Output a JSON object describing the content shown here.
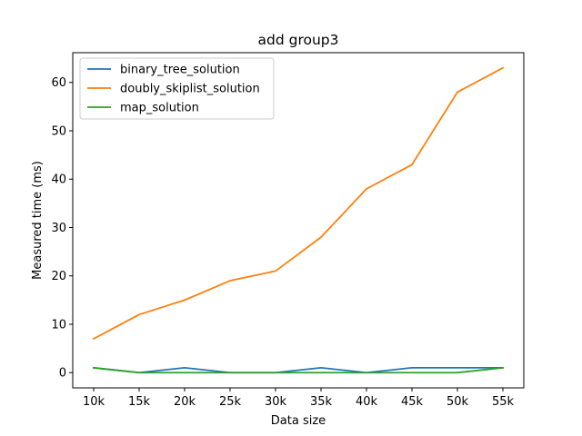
{
  "chart_data": {
    "type": "line",
    "title": "add group3",
    "xlabel": "Data size",
    "ylabel": "Measured time (ms)",
    "categories": [
      "10k",
      "15k",
      "20k",
      "25k",
      "30k",
      "35k",
      "40k",
      "45k",
      "50k",
      "55k"
    ],
    "ylim": [
      -3.15,
      66.15
    ],
    "yticks": [
      0,
      10,
      20,
      30,
      40,
      50,
      60
    ],
    "grid": false,
    "legend_position": "top-left",
    "series": [
      {
        "name": "binary_tree_solution",
        "color": "#1f77b4",
        "values": [
          1,
          0,
          1,
          0,
          0,
          1,
          0,
          1,
          1,
          1
        ]
      },
      {
        "name": "doubly_skiplist_solution",
        "color": "#ff7f0e",
        "values": [
          7,
          12,
          15,
          19,
          21,
          28,
          38,
          43,
          58,
          63
        ]
      },
      {
        "name": "map_solution",
        "color": "#2ca02c",
        "values": [
          1,
          0,
          0,
          0,
          0,
          0,
          0,
          0,
          0,
          1
        ]
      }
    ]
  }
}
